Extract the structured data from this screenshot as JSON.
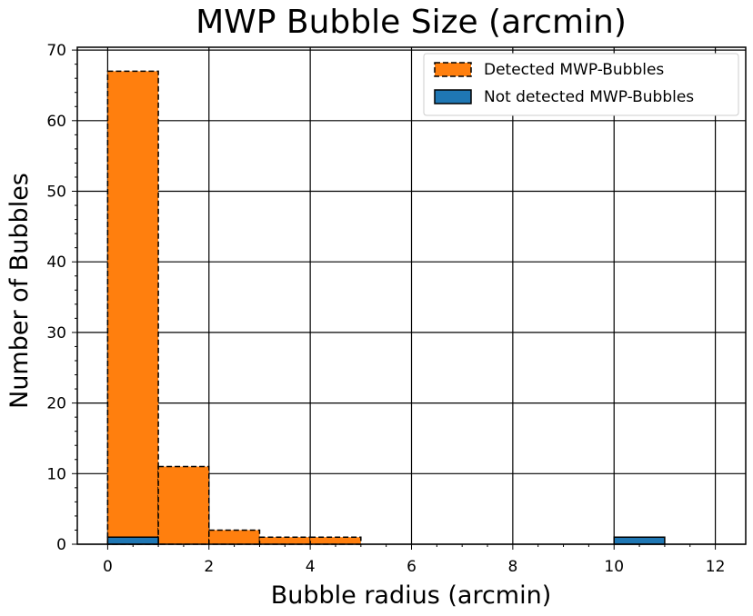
{
  "chart_data": {
    "type": "bar",
    "title": "MWP Bubble Size (arcmin)",
    "xlabel": "Bubble radius (arcmin)",
    "ylabel": "Number of Bubbles",
    "xlim": [
      -0.6,
      12.6
    ],
    "ylim": [
      0,
      70.4
    ],
    "xticks": [
      0,
      2,
      4,
      6,
      8,
      10,
      12
    ],
    "yticks": [
      0,
      10,
      20,
      30,
      40,
      50,
      60,
      70
    ],
    "bin_edges": [
      0,
      1,
      2,
      3,
      4,
      5,
      6,
      7,
      8,
      9,
      10,
      11,
      12
    ],
    "series": [
      {
        "name": "Detected MWP-Bubbles",
        "color": "#ff7f0e",
        "line_style": "dashed",
        "values": [
          67,
          11,
          2,
          1,
          1,
          0,
          0,
          0,
          0,
          0,
          0,
          0
        ]
      },
      {
        "name": "Not detected MWP-Bubbles",
        "color": "#1f77b4",
        "line_style": "solid",
        "values": [
          1,
          0,
          0,
          0,
          0,
          0,
          0,
          0,
          0,
          0,
          1,
          0
        ]
      }
    ],
    "grid": true,
    "legend_position": "top-right"
  }
}
